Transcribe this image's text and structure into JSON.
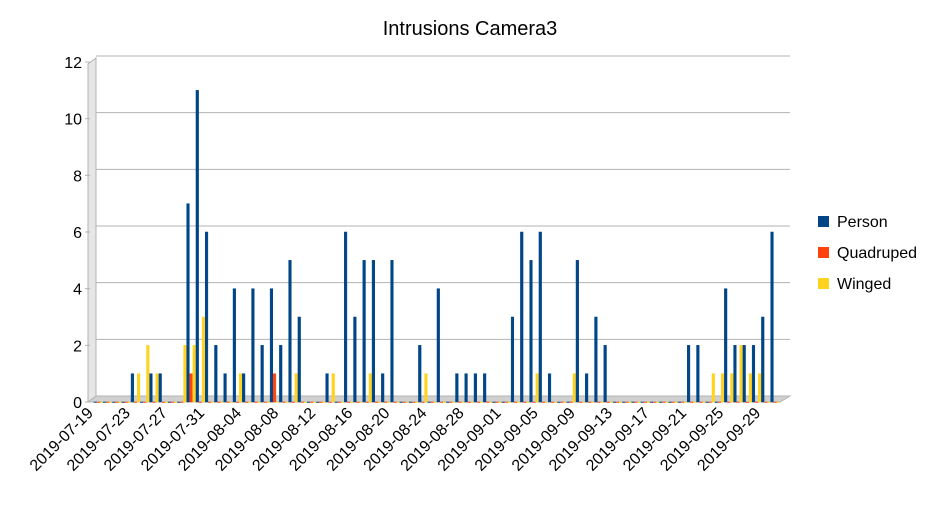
{
  "chart_data": {
    "type": "bar",
    "title": "Intrusions Camera3",
    "categories": [
      "2019-07-19",
      null,
      null,
      null,
      "2019-07-23",
      null,
      null,
      null,
      "2019-07-27",
      null,
      null,
      null,
      "2019-07-31",
      null,
      null,
      null,
      "2019-08-04",
      null,
      null,
      null,
      "2019-08-08",
      null,
      null,
      null,
      "2019-08-12",
      null,
      null,
      null,
      "2019-08-16",
      null,
      null,
      null,
      "2019-08-20",
      null,
      null,
      null,
      "2019-08-24",
      null,
      null,
      null,
      "2019-08-28",
      null,
      null,
      null,
      "2019-09-01",
      null,
      null,
      null,
      "2019-09-05",
      null,
      null,
      null,
      "2019-09-09",
      null,
      null,
      null,
      "2019-09-13",
      null,
      null,
      null,
      "2019-09-17",
      null,
      null,
      null,
      "2019-09-21",
      null,
      null,
      null,
      "2019-09-25",
      null,
      null,
      null,
      "2019-09-29",
      null
    ],
    "series": [
      {
        "name": "Person",
        "color": "#004586",
        "values": [
          0,
          0,
          0,
          0,
          1,
          0,
          1,
          1,
          0,
          0,
          7,
          11,
          6,
          2,
          1,
          4,
          1,
          4,
          2,
          4,
          2,
          5,
          3,
          0,
          0,
          1,
          0,
          6,
          3,
          5,
          5,
          1,
          5,
          0,
          0,
          2,
          0,
          4,
          0,
          1,
          1,
          1,
          1,
          0,
          0,
          3,
          6,
          5,
          6,
          1,
          0,
          0,
          5,
          1,
          3,
          2,
          0,
          0,
          0,
          0,
          0,
          0,
          0,
          0,
          2,
          2,
          0,
          0,
          4,
          2,
          2,
          2,
          3,
          6
        ]
      },
      {
        "name": "Quadruped",
        "color": "#ff420e",
        "values": [
          0,
          0,
          0,
          0,
          0,
          0,
          0,
          0,
          0,
          0,
          1,
          0,
          0,
          0,
          0,
          0,
          0,
          0,
          0,
          1,
          0,
          0,
          0,
          0,
          0,
          0,
          0,
          0,
          0,
          0,
          0,
          0,
          0,
          0,
          0,
          0,
          0,
          0,
          0,
          0,
          0,
          0,
          0,
          0,
          0,
          0,
          0,
          0,
          0,
          0,
          0,
          0,
          0,
          0,
          0,
          0,
          0,
          0,
          0,
          0,
          0,
          0,
          0,
          0,
          0,
          0,
          0,
          0,
          0,
          0,
          0,
          0,
          0,
          0
        ]
      },
      {
        "name": "Winged",
        "color": "#ffd320",
        "values": [
          0,
          0,
          0,
          0,
          1,
          2,
          1,
          0,
          0,
          2,
          2,
          3,
          0,
          0,
          0,
          1,
          0,
          0,
          0,
          0,
          0,
          1,
          0,
          0,
          0,
          1,
          0,
          0,
          0,
          1,
          0,
          0,
          0,
          0,
          0,
          1,
          0,
          0,
          0,
          0,
          0,
          0,
          0,
          0,
          0,
          0,
          0,
          1,
          0,
          0,
          0,
          1,
          0,
          0,
          0,
          0,
          0,
          0,
          0,
          0,
          0,
          0,
          0,
          0,
          0,
          0,
          1,
          1,
          1,
          2,
          1,
          1,
          0,
          0
        ]
      }
    ],
    "ylim": [
      0,
      12
    ],
    "yticks": [
      0,
      2,
      4,
      6,
      8,
      10,
      12
    ],
    "grid": true,
    "legend": "right"
  }
}
